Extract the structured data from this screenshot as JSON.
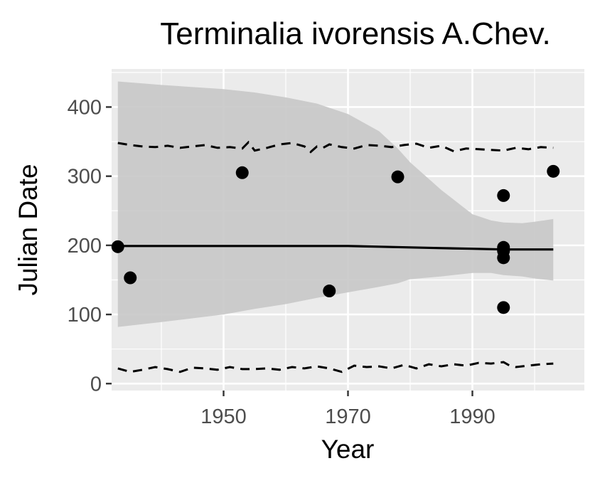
{
  "chart_data": {
    "type": "scatter",
    "title": "Terminalia ivorensis A.Chev.",
    "xlabel": "Year",
    "ylabel": "Julian Date",
    "xlim": [
      1932,
      2008
    ],
    "ylim": [
      -10,
      455
    ],
    "x_ticks": [
      1950,
      1970,
      1990
    ],
    "y_ticks": [
      0,
      100,
      200,
      300,
      400
    ],
    "grid": true,
    "legend": "none",
    "colors": {
      "panel_background": "#ebebeb",
      "grid": "#ffffff",
      "ribbon": "#c8c8c8",
      "points": "#000000",
      "lines": "#000000"
    },
    "points": [
      {
        "x": 1933,
        "y": 198
      },
      {
        "x": 1935,
        "y": 153
      },
      {
        "x": 1953,
        "y": 305
      },
      {
        "x": 1967,
        "y": 134
      },
      {
        "x": 1978,
        "y": 299
      },
      {
        "x": 1995,
        "y": 272
      },
      {
        "x": 1995,
        "y": 197
      },
      {
        "x": 1995,
        "y": 192
      },
      {
        "x": 1995,
        "y": 182
      },
      {
        "x": 1995,
        "y": 110
      },
      {
        "x": 2003,
        "y": 307
      }
    ],
    "trend": {
      "x": [
        1933,
        1950,
        1960,
        1970,
        1975,
        1980,
        1985,
        1990,
        1995,
        2000,
        2003
      ],
      "y": [
        199,
        199,
        199,
        199,
        198,
        197,
        196,
        195,
        194,
        194,
        194
      ]
    },
    "ribbon": {
      "x": [
        1933,
        1940,
        1950,
        1955,
        1960,
        1965,
        1970,
        1975,
        1978,
        1980,
        1985,
        1990,
        1993,
        1995,
        1998,
        2000,
        2003
      ],
      "upper": [
        437,
        432,
        426,
        421,
        414,
        405,
        390,
        365,
        340,
        320,
        280,
        245,
        236,
        233,
        232,
        234,
        238
      ],
      "lower": [
        82,
        89,
        100,
        108,
        115,
        124,
        132,
        140,
        145,
        151,
        155,
        160,
        160,
        157,
        155,
        152,
        149
      ]
    },
    "upper_dashed": {
      "x": [
        1933,
        1935,
        1937,
        1939,
        1941,
        1943,
        1945,
        1947,
        1949,
        1951,
        1953,
        1954,
        1955,
        1957,
        1959,
        1961,
        1963,
        1964,
        1965,
        1966,
        1967,
        1969,
        1971,
        1973,
        1975,
        1977,
        1979,
        1981,
        1983,
        1985,
        1987,
        1989,
        1991,
        1993,
        1995,
        1997,
        1999,
        2001,
        2003
      ],
      "y": [
        348,
        345,
        343,
        342,
        344,
        341,
        343,
        345,
        341,
        342,
        340,
        349,
        337,
        341,
        346,
        348,
        343,
        335,
        343,
        341,
        346,
        342,
        340,
        345,
        344,
        342,
        345,
        347,
        341,
        344,
        336,
        340,
        339,
        338,
        337,
        341,
        339,
        342,
        341
      ]
    },
    "lower_dashed": {
      "x": [
        1933,
        1935,
        1937,
        1939,
        1941,
        1943,
        1945,
        1947,
        1949,
        1951,
        1953,
        1955,
        1957,
        1959,
        1961,
        1963,
        1965,
        1967,
        1969,
        1971,
        1973,
        1975,
        1977,
        1979,
        1981,
        1983,
        1985,
        1987,
        1989,
        1991,
        1993,
        1995,
        1996,
        1997,
        1999,
        2001,
        2003
      ],
      "y": [
        22,
        17,
        20,
        24,
        21,
        17,
        23,
        22,
        20,
        24,
        21,
        21,
        22,
        20,
        24,
        22,
        25,
        22,
        17,
        26,
        24,
        25,
        22,
        27,
        22,
        28,
        25,
        28,
        26,
        30,
        29,
        31,
        26,
        24,
        26,
        28,
        29
      ]
    }
  }
}
